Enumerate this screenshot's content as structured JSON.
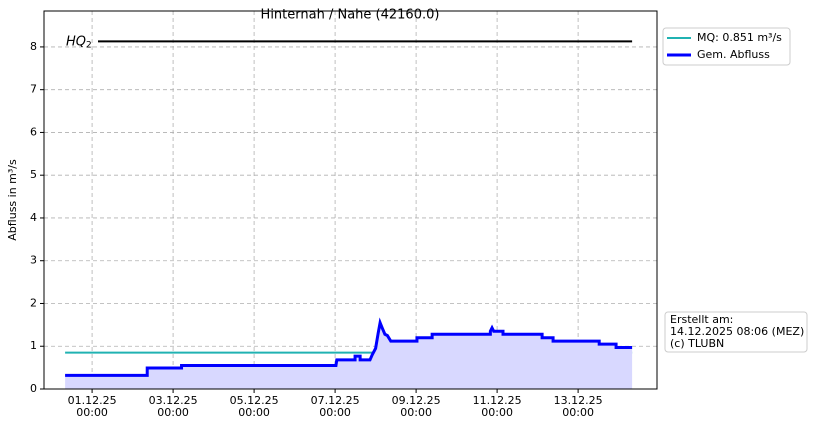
{
  "chart_data": {
    "type": "line",
    "title": "Hinternah / Nahe (42160.0)",
    "y_label": "Abfluss in m³/s",
    "xlim": [
      "2025-11-29T19:30",
      "2025-12-14T22:45"
    ],
    "xticks": [
      {
        "value": "2025-12-01T00:00",
        "label": "01.12.25\n00:00"
      },
      {
        "value": "2025-12-03T00:00",
        "label": "03.12.25\n00:00"
      },
      {
        "value": "2025-12-05T00:00",
        "label": "05.12.25\n00:00"
      },
      {
        "value": "2025-12-07T00:00",
        "label": "07.12.25\n00:00"
      },
      {
        "value": "2025-12-09T00:00",
        "label": "09.12.25\n00:00"
      },
      {
        "value": "2025-12-11T00:00",
        "label": "11.12.25\n00:00"
      },
      {
        "value": "2025-12-13T00:00",
        "label": "13.12.25\n00:00"
      }
    ],
    "ylim": [
      0,
      8.84
    ],
    "yticks": [
      0,
      1,
      2,
      3,
      4,
      5,
      6,
      7,
      8
    ],
    "grid": true,
    "reference_lines": [
      {
        "label": "HQ",
        "subscript": "2",
        "value": 8.13,
        "color": "#000000"
      }
    ],
    "series": [
      {
        "name": "MQ: 0.851 m³/s",
        "color": "#20b2b2",
        "width": 2,
        "x": [
          "2025-11-30T08:00",
          "2025-12-14T08:00"
        ],
        "values": [
          0.851,
          0.851
        ]
      },
      {
        "name": "Gem. Abfluss",
        "color": "#0000ff",
        "width": 3,
        "fill": "#d8d8ff",
        "x": [
          "2025-11-30T08:00",
          "2025-12-02T08:40",
          "2025-12-02T08:40",
          "2025-12-03T05:00",
          "2025-12-03T05:00",
          "2025-12-07T00:30",
          "2025-12-07T01:00",
          "2025-12-07T11:50",
          "2025-12-07T11:50",
          "2025-12-07T14:50",
          "2025-12-07T14:50",
          "2025-12-07T20:40",
          "2025-12-07T22:00",
          "2025-12-08T00:00",
          "2025-12-08T01:30",
          "2025-12-08T02:40",
          "2025-12-08T04:00",
          "2025-12-08T05:30",
          "2025-12-08T07:00",
          "2025-12-08T09:00",
          "2025-12-09T00:30",
          "2025-12-09T00:30",
          "2025-12-09T09:30",
          "2025-12-09T09:30",
          "2025-12-10T20:00",
          "2025-12-10T20:00",
          "2025-12-10T21:00",
          "2025-12-10T22:00",
          "2025-12-11T03:30",
          "2025-12-11T03:30",
          "2025-12-12T02:40",
          "2025-12-12T02:40",
          "2025-12-12T09:10",
          "2025-12-12T09:10",
          "2025-12-13T12:30",
          "2025-12-13T12:30",
          "2025-12-13T22:30",
          "2025-12-13T22:30",
          "2025-12-14T08:00"
        ],
        "values": [
          0.32,
          0.32,
          0.49,
          0.49,
          0.55,
          0.55,
          0.68,
          0.68,
          0.77,
          0.77,
          0.68,
          0.68,
          0.8,
          0.95,
          1.3,
          1.55,
          1.42,
          1.28,
          1.25,
          1.12,
          1.12,
          1.2,
          1.2,
          1.28,
          1.28,
          1.35,
          1.43,
          1.35,
          1.35,
          1.28,
          1.28,
          1.2,
          1.2,
          1.12,
          1.12,
          1.05,
          1.05,
          0.97,
          0.97
        ]
      }
    ],
    "annotation": [
      "Erstellt am:",
      "14.12.2025 08:06 (MEZ)",
      "(c) TLUBN"
    ]
  }
}
